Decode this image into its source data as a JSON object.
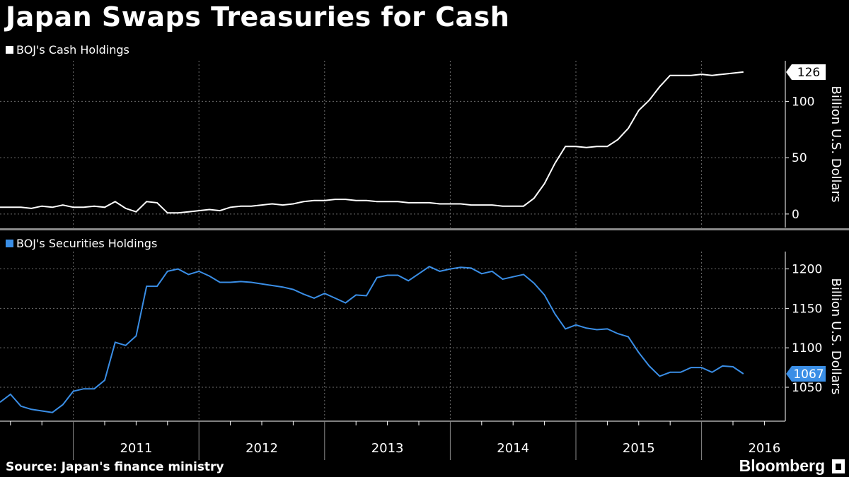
{
  "title": "Japan Swaps Treasuries for Cash",
  "source": "Source: Japan's finance ministry",
  "brand": "Bloomberg",
  "colors": {
    "background": "#000000",
    "cash_series": "#ffffff",
    "securities_series": "#3a8ee6",
    "grid": "#6e6e6e"
  },
  "chart_data": [
    {
      "type": "line",
      "legend": "BOJ's Cash Holdings",
      "ylabel": "Billion U.S. Dollars",
      "yticks": [
        0,
        50,
        100
      ],
      "ylim": [
        -12,
        136
      ],
      "last_value_label": "126",
      "x_start": "2010-06",
      "x_end": "2016-09",
      "grid": true,
      "series": [
        {
          "values": [
            6,
            6,
            6,
            5,
            7,
            6,
            8,
            6,
            6,
            7,
            6,
            11,
            5,
            2,
            11,
            10,
            1,
            1,
            2,
            3,
            4,
            3,
            6,
            7,
            7,
            8,
            9,
            8,
            9,
            11,
            12,
            12,
            13,
            13,
            12,
            12,
            11,
            11,
            11,
            10,
            10,
            10,
            9,
            9,
            9,
            8,
            8,
            8,
            7,
            7,
            7,
            14,
            27,
            45,
            60,
            60,
            59,
            60,
            60,
            66,
            76,
            92,
            101,
            113,
            123,
            123,
            123,
            124,
            123,
            124,
            125,
            126
          ]
        }
      ]
    },
    {
      "type": "line",
      "legend": "BOJ's Securities Holdings",
      "ylabel": "Billion U.S. Dollars",
      "yticks": [
        1050,
        1100,
        1150,
        1200
      ],
      "ylim": [
        1007,
        1222
      ],
      "last_value_label": "1067",
      "x_start": "2010-06",
      "x_end": "2016-09",
      "x_tick_labels": [
        "2011",
        "2012",
        "2013",
        "2014",
        "2015",
        "2016"
      ],
      "grid": true,
      "series": [
        {
          "values": [
            1031,
            1041,
            1026,
            1022,
            1020,
            1018,
            1028,
            1045,
            1048,
            1048,
            1059,
            1107,
            1103,
            1115,
            1178,
            1178,
            1197,
            1200,
            1193,
            1197,
            1191,
            1183,
            1183,
            1184,
            1183,
            1181,
            1179,
            1177,
            1174,
            1168,
            1163,
            1169,
            1163,
            1157,
            1167,
            1166,
            1189,
            1192,
            1192,
            1185,
            1194,
            1203,
            1197,
            1200,
            1202,
            1201,
            1194,
            1197,
            1187,
            1190,
            1193,
            1182,
            1167,
            1143,
            1124,
            1129,
            1125,
            1123,
            1124,
            1118,
            1114,
            1094,
            1077,
            1064,
            1069,
            1069,
            1075,
            1075,
            1069,
            1077,
            1076,
            1067
          ]
        }
      ]
    }
  ]
}
